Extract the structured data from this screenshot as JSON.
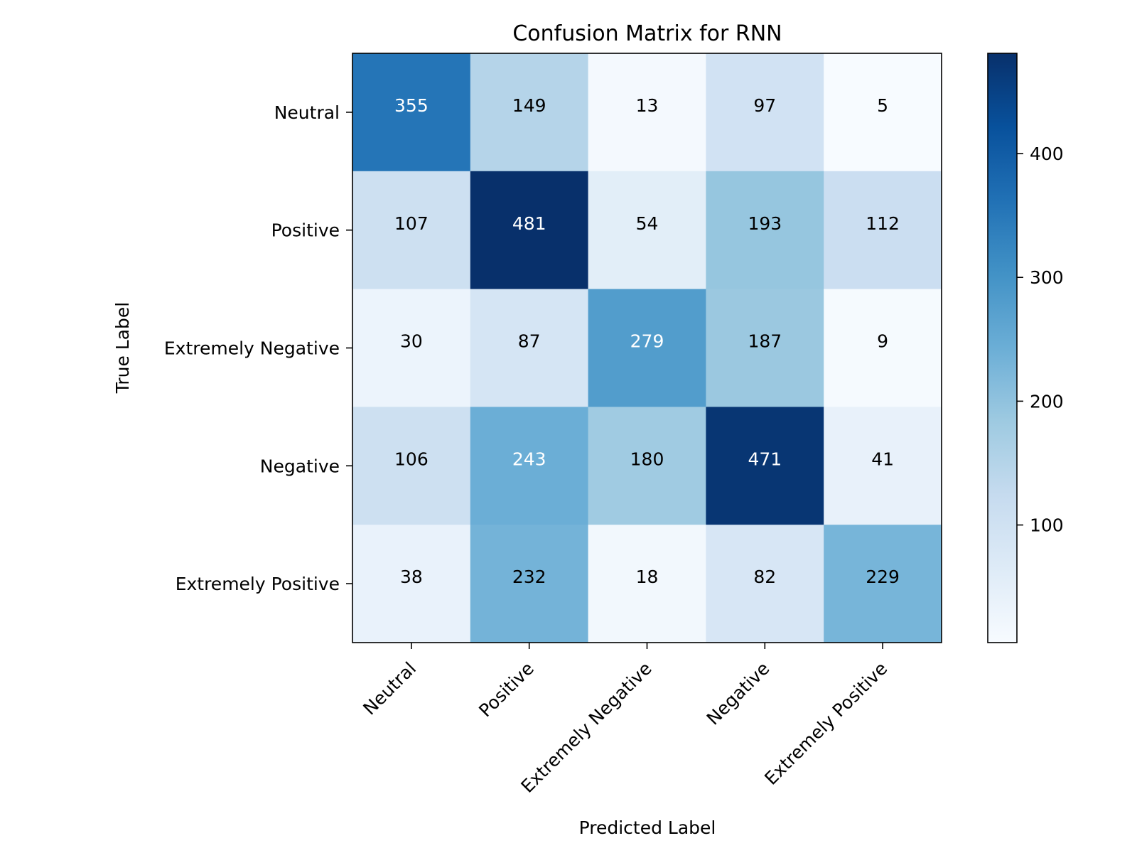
{
  "chart_data": {
    "type": "heatmap",
    "title": "Confusion Matrix for RNN",
    "xlabel": "Predicted Label",
    "ylabel": "True Label",
    "x_categories": [
      "Neutral",
      "Positive",
      "Extremely Negative",
      "Negative",
      "Extremely Positive"
    ],
    "y_categories": [
      "Neutral",
      "Positive",
      "Extremely Negative",
      "Negative",
      "Extremely Positive"
    ],
    "values": [
      [
        355,
        149,
        13,
        97,
        5
      ],
      [
        107,
        481,
        54,
        193,
        112
      ],
      [
        30,
        87,
        279,
        187,
        9
      ],
      [
        106,
        243,
        180,
        471,
        41
      ],
      [
        38,
        232,
        18,
        82,
        229
      ]
    ],
    "colormap": "Blues",
    "color_range": [
      5,
      481
    ],
    "colorbar_ticks": [
      100,
      200,
      300,
      400
    ],
    "text_color_light": "#ffffff",
    "text_color_dark": "#000000"
  }
}
